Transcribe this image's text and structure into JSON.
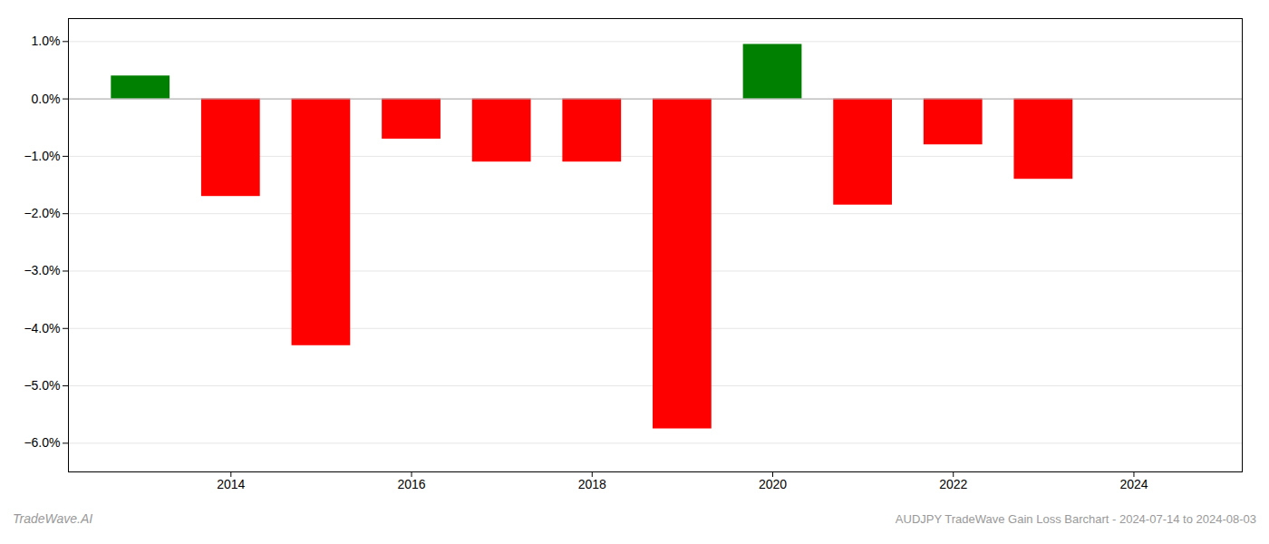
{
  "chart_data": {
    "type": "bar",
    "title": "AUDJPY TradeWave Gain Loss Barchart - 2024-07-14 to 2024-08-03",
    "annotations": [
      "TradeWave.AI"
    ],
    "x": [
      2013,
      2014,
      2015,
      2016,
      2017,
      2018,
      2019,
      2020,
      2021,
      2022,
      2023
    ],
    "values": [
      0.4,
      -1.7,
      -4.3,
      -0.7,
      -1.1,
      -1.1,
      -5.75,
      0.95,
      -1.85,
      -0.8,
      -1.4
    ],
    "colors": [
      "#008000",
      "#ff0000",
      "#ff0000",
      "#ff0000",
      "#ff0000",
      "#ff0000",
      "#ff0000",
      "#008000",
      "#ff0000",
      "#ff0000",
      "#ff0000"
    ],
    "xlim": [
      2012.2,
      2025.2
    ],
    "xticks": [
      2014,
      2016,
      2018,
      2020,
      2022,
      2024
    ],
    "ylim": [
      -6.5,
      1.4
    ],
    "yticks": [
      {
        "value": 1.0,
        "label": "1.0%"
      },
      {
        "value": 0.0,
        "label": "0.0%"
      },
      {
        "value": -1.0,
        "label": "−1.0%"
      },
      {
        "value": -2.0,
        "label": "−2.0%"
      },
      {
        "value": -3.0,
        "label": "−3.0%"
      },
      {
        "value": -4.0,
        "label": "−4.0%"
      },
      {
        "value": -5.0,
        "label": "−5.0%"
      },
      {
        "value": -6.0,
        "label": "−6.0%"
      }
    ],
    "grid": true
  }
}
